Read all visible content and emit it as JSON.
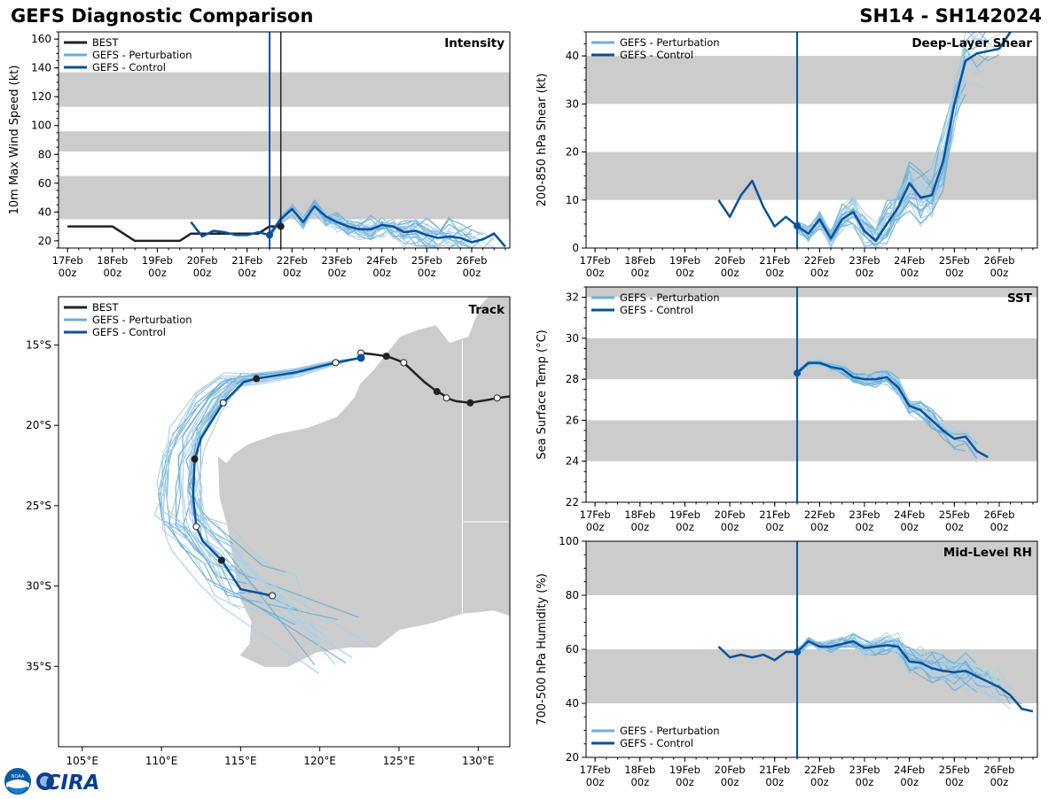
{
  "header": {
    "title": "GEFS Diagnostic Comparison",
    "storm_id": "SH14 - SH142024"
  },
  "logo": {
    "noaa": "NOAA",
    "cira": "CIRA"
  },
  "colors": {
    "best": "#222222",
    "perturbation": "#6baed6",
    "perturbation_thin": "#a9cfe7",
    "control": "#08519c",
    "band": "#cccccc",
    "land": "#cccccc"
  },
  "time_axis": {
    "days": [
      "17Feb",
      "18Feb",
      "19Feb",
      "20Feb",
      "21Feb",
      "22Feb",
      "23Feb",
      "24Feb",
      "25Feb",
      "26Feb"
    ],
    "hour_label": "00z",
    "init_day": 21.5,
    "best_day": 21.75
  },
  "legend": {
    "best": "BEST",
    "perturbation": "GEFS - Perturbation",
    "control": "GEFS - Control"
  },
  "chart_data": [
    {
      "id": "intensity",
      "type": "line",
      "title": "Intensity",
      "ylabel": "10m Max Wind Speed (kt)",
      "ylim": [
        15,
        165
      ],
      "yticks": [
        20,
        40,
        60,
        80,
        100,
        120,
        140,
        160
      ],
      "bands": [
        [
          35,
          65
        ],
        [
          82,
          96
        ],
        [
          113,
          137
        ]
      ],
      "x_units": "days (Feb 2024)",
      "series": [
        {
          "name": "BEST",
          "x": [
            17.0,
            18.0,
            18.5,
            19.0,
            19.5,
            19.75,
            20.0,
            20.5,
            21.0,
            21.25,
            21.5,
            21.75
          ],
          "y": [
            30,
            30,
            20,
            20,
            20,
            25,
            25,
            25,
            25,
            25,
            30,
            30
          ]
        },
        {
          "name": "GEFS - Control (analysis)",
          "x": [
            19.75,
            20.0,
            20.25,
            20.5,
            20.75,
            21.0,
            21.25,
            21.5
          ],
          "y": [
            33,
            23,
            27,
            26,
            24,
            24,
            26,
            24
          ]
        },
        {
          "name": "GEFS - Control",
          "x": [
            21.5,
            21.75,
            22.0,
            22.25,
            22.5,
            22.75,
            23.0,
            23.25,
            23.5,
            23.75,
            24.0,
            24.25,
            24.5,
            24.75,
            25.0,
            25.25,
            25.5,
            25.75,
            26.0,
            26.25,
            26.5,
            26.75
          ],
          "y": [
            24,
            35,
            42,
            33,
            44,
            37,
            33,
            30,
            28,
            28,
            31,
            30,
            26,
            27,
            24,
            22,
            23,
            22,
            19,
            21,
            25,
            16
          ]
        }
      ]
    },
    {
      "id": "shear",
      "type": "line",
      "title": "Deep-Layer Shear",
      "ylabel": "200-850 hPa Shear (kt)",
      "ylim": [
        0,
        45
      ],
      "yticks": [
        0,
        10,
        20,
        30,
        40
      ],
      "bands": [
        [
          10,
          20
        ],
        [
          30,
          40
        ]
      ],
      "x_units": "days (Feb 2024)",
      "series": [
        {
          "name": "GEFS - Control (analysis)",
          "x": [
            19.75,
            20.0,
            20.25,
            20.5,
            20.75,
            21.0,
            21.25,
            21.5
          ],
          "y": [
            10,
            6.5,
            11,
            14,
            8.5,
            4.5,
            6.5,
            4.6
          ]
        },
        {
          "name": "GEFS - Control",
          "x": [
            21.5,
            21.75,
            22.0,
            22.25,
            22.5,
            22.75,
            23.0,
            23.25,
            23.5,
            23.75,
            24.0,
            24.25,
            24.5,
            24.75,
            25.0,
            25.25,
            25.5,
            25.75,
            26.0,
            26.25
          ],
          "y": [
            4.6,
            3,
            6,
            2,
            6,
            7.5,
            3.5,
            1.5,
            5,
            8.5,
            13.5,
            10.5,
            11,
            18,
            30,
            39,
            40.5,
            41,
            41.5,
            45
          ]
        }
      ]
    },
    {
      "id": "sst",
      "type": "line",
      "title": "SST",
      "ylabel": "Sea Surface Temp (°C)",
      "ylim": [
        22,
        32.5
      ],
      "yticks": [
        22,
        24,
        26,
        28,
        30,
        32
      ],
      "bands": [
        [
          24,
          26
        ],
        [
          28,
          30
        ],
        [
          32,
          33
        ]
      ],
      "x_units": "days (Feb 2024)",
      "series": [
        {
          "name": "GEFS - Control",
          "x": [
            21.5,
            21.75,
            22.0,
            22.25,
            22.5,
            22.75,
            23.0,
            23.25,
            23.5,
            23.75,
            24.0,
            24.25,
            24.5,
            24.75,
            25.0,
            25.25,
            25.5,
            25.75
          ],
          "y": [
            28.3,
            28.8,
            28.8,
            28.6,
            28.5,
            28.1,
            28.0,
            28.0,
            28.1,
            27.6,
            26.7,
            26.5,
            26.0,
            25.5,
            25.1,
            25.2,
            24.5,
            24.2
          ]
        }
      ]
    },
    {
      "id": "rh",
      "type": "line",
      "title": "Mid-Level RH",
      "ylabel": "700-500 hPa Humidity (%)",
      "ylim": [
        20,
        100
      ],
      "yticks": [
        20,
        40,
        60,
        80,
        100
      ],
      "bands": [
        [
          40,
          60
        ],
        [
          80,
          100
        ]
      ],
      "x_units": "days (Feb 2024)",
      "series": [
        {
          "name": "GEFS - Control (analysis)",
          "x": [
            19.75,
            20.0,
            20.25,
            20.5,
            20.75,
            21.0,
            21.25,
            21.5
          ],
          "y": [
            61,
            57,
            58,
            57,
            58,
            56,
            59,
            59
          ]
        },
        {
          "name": "GEFS - Control",
          "x": [
            21.5,
            21.75,
            22.0,
            22.25,
            22.5,
            22.75,
            23.0,
            23.25,
            23.5,
            23.75,
            24.0,
            24.25,
            24.5,
            24.75,
            25.0,
            25.25,
            25.5,
            25.75,
            26.0,
            26.25,
            26.5,
            26.75
          ],
          "y": [
            59,
            63,
            61,
            61,
            62,
            63,
            60.5,
            61,
            61.5,
            61,
            55.5,
            55,
            53,
            52,
            51.5,
            52,
            50,
            48,
            46,
            43,
            38,
            37
          ]
        }
      ]
    },
    {
      "id": "track",
      "type": "scatter",
      "title": "Track",
      "xlim": [
        103.5,
        132
      ],
      "ylim": [
        -40,
        -12
      ],
      "xticks": [
        105,
        110,
        115,
        120,
        125,
        130
      ],
      "xtick_labels": [
        "105°E",
        "110°E",
        "115°E",
        "120°E",
        "125°E",
        "130°E"
      ],
      "yticks": [
        -15,
        -20,
        -25,
        -30,
        -35
      ],
      "ytick_labels": [
        "15°S",
        "20°S",
        "25°S",
        "30°S",
        "35°S"
      ],
      "series": [
        {
          "name": "BEST",
          "lon": [
            132.0,
            131.2,
            130.7,
            129.5,
            128.6,
            128.0,
            127.8,
            127.4,
            126.6,
            125.3,
            124.8,
            124.2,
            123.5,
            122.6
          ],
          "lat": [
            -18.2,
            -18.3,
            -18.4,
            -18.6,
            -18.5,
            -18.3,
            -18.1,
            -17.9,
            -17.3,
            -16.1,
            -15.9,
            -15.7,
            -15.6,
            -15.5
          ]
        },
        {
          "name": "GEFS - Control",
          "lon": [
            122.6,
            121.0,
            118.5,
            116.0,
            115.2,
            113.9,
            112.5,
            112.1,
            112.0,
            112.2,
            112.6,
            113.8,
            115.0,
            117.0
          ],
          "lat": [
            -15.8,
            -16.1,
            -16.7,
            -17.1,
            -17.3,
            -18.6,
            -20.8,
            -22.1,
            -24.4,
            -26.3,
            -27.2,
            -28.4,
            -30.2,
            -30.6
          ]
        }
      ]
    }
  ]
}
